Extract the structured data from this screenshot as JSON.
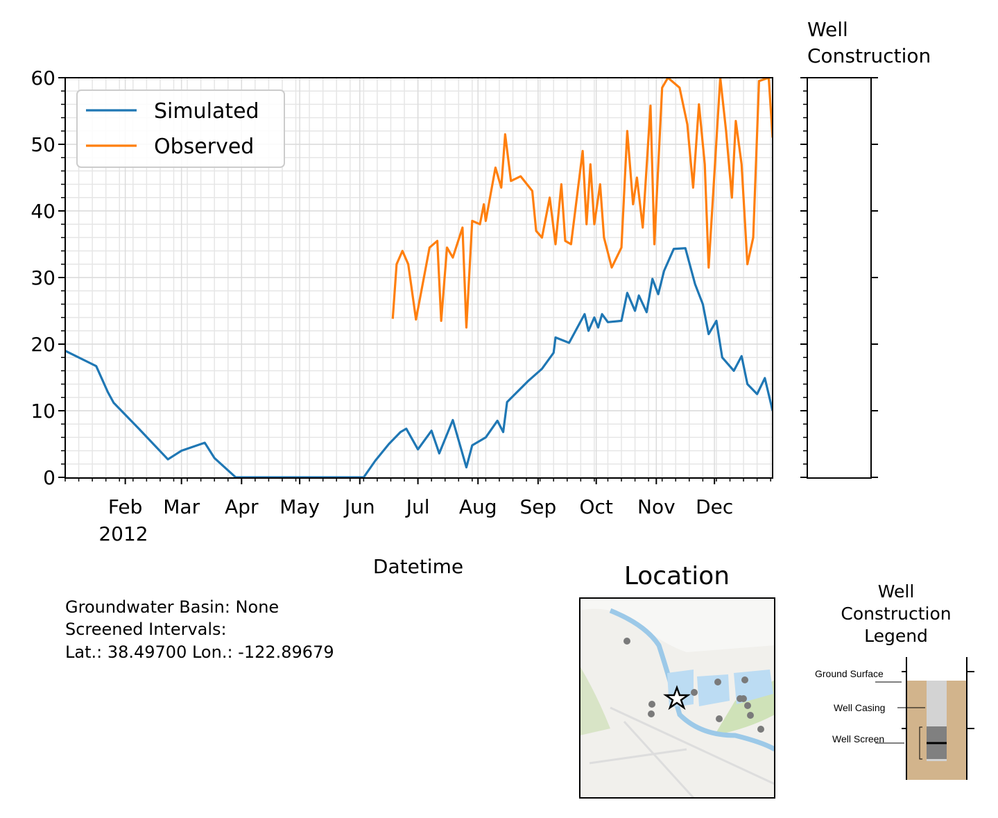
{
  "chart_data": {
    "type": "line",
    "xlabel": "Datetime",
    "year_label": "2012",
    "xlim": [
      "2012-01-01",
      "2012-12-31"
    ],
    "xticks": [
      {
        "value": "2012-02-01",
        "label": "Feb"
      },
      {
        "value": "2012-03-01",
        "label": "Mar"
      },
      {
        "value": "2012-04-01",
        "label": "Apr"
      },
      {
        "value": "2012-05-01",
        "label": "May"
      },
      {
        "value": "2012-06-01",
        "label": "Jun"
      },
      {
        "value": "2012-07-01",
        "label": "Jul"
      },
      {
        "value": "2012-08-01",
        "label": "Aug"
      },
      {
        "value": "2012-09-01",
        "label": "Sep"
      },
      {
        "value": "2012-10-01",
        "label": "Oct"
      },
      {
        "value": "2012-11-01",
        "label": "Nov"
      },
      {
        "value": "2012-12-01",
        "label": "Dec"
      }
    ],
    "ylim": [
      0,
      60
    ],
    "yticks": [
      0,
      10,
      20,
      30,
      40,
      50,
      60
    ],
    "grid": true,
    "legend": "upper left",
    "series": [
      {
        "name": "Simulated",
        "color": "#1f77b4",
        "x": [
          "2012-01-01",
          "2012-01-17",
          "2012-01-23",
          "2012-01-26",
          "2012-02-08",
          "2012-02-23",
          "2012-03-01",
          "2012-03-13",
          "2012-03-18",
          "2012-03-29",
          "2012-04-15",
          "2012-05-15",
          "2012-06-03",
          "2012-06-09",
          "2012-06-16",
          "2012-06-22",
          "2012-06-25",
          "2012-07-01",
          "2012-07-08",
          "2012-07-12",
          "2012-07-19",
          "2012-07-26",
          "2012-07-29",
          "2012-08-05",
          "2012-08-11",
          "2012-08-14",
          "2012-08-16",
          "2012-08-27",
          "2012-09-03",
          "2012-09-09",
          "2012-09-10",
          "2012-09-17",
          "2012-09-25",
          "2012-09-27",
          "2012-09-30",
          "2012-10-02",
          "2012-10-04",
          "2012-10-07",
          "2012-10-14",
          "2012-10-17",
          "2012-10-21",
          "2012-10-23",
          "2012-10-27",
          "2012-10-30",
          "2012-11-02",
          "2012-11-05",
          "2012-11-10",
          "2012-11-16",
          "2012-11-21",
          "2012-11-25",
          "2012-11-28",
          "2012-12-02",
          "2012-12-05",
          "2012-12-11",
          "2012-12-15",
          "2012-12-18",
          "2012-12-23",
          "2012-12-27",
          "2012-12-31"
        ],
        "values": [
          19,
          16.7,
          12.8,
          11.2,
          7.3,
          2.7,
          4,
          5.2,
          2.9,
          0,
          0,
          0,
          0,
          2.5,
          5,
          6.8,
          7.3,
          4.2,
          7,
          3.6,
          8.6,
          1.5,
          4.8,
          6,
          8.5,
          6.8,
          11.3,
          14.5,
          16.3,
          18.7,
          21,
          20.2,
          24.5,
          22,
          24,
          22.5,
          24.5,
          23.3,
          23.5,
          27.7,
          25,
          27.3,
          24.8,
          29.8,
          27.5,
          31,
          34.3,
          34.4,
          29,
          26,
          21.5,
          23.5,
          18,
          16,
          18.2,
          14,
          12.5,
          14.9,
          10
        ]
      },
      {
        "name": "Observed",
        "color": "#ff7f0e",
        "x": [
          "2012-06-18",
          "2012-06-20",
          "2012-06-23",
          "2012-06-26",
          "2012-06-30",
          "2012-07-07",
          "2012-07-11",
          "2012-07-13",
          "2012-07-16",
          "2012-07-19",
          "2012-07-24",
          "2012-07-26",
          "2012-07-29",
          "2012-08-02",
          "2012-08-04",
          "2012-08-05",
          "2012-08-10",
          "2012-08-13",
          "2012-08-15",
          "2012-08-18",
          "2012-08-23",
          "2012-08-29",
          "2012-08-31",
          "2012-09-03",
          "2012-09-07",
          "2012-09-10",
          "2012-09-13",
          "2012-09-15",
          "2012-09-18",
          "2012-09-24",
          "2012-09-26",
          "2012-09-28",
          "2012-09-30",
          "2012-10-03",
          "2012-10-05",
          "2012-10-09",
          "2012-10-14",
          "2012-10-17",
          "2012-10-20",
          "2012-10-22",
          "2012-10-25",
          "2012-10-29",
          "2012-10-31",
          "2012-11-04",
          "2012-11-07",
          "2012-11-13",
          "2012-11-17",
          "2012-11-20",
          "2012-11-23",
          "2012-11-26",
          "2012-11-28",
          "2012-12-04",
          "2012-12-07",
          "2012-12-10",
          "2012-12-12",
          "2012-12-15",
          "2012-12-18",
          "2012-12-21",
          "2012-12-24",
          "2012-12-29",
          "2012-12-31"
        ],
        "values": [
          23.8,
          32,
          34,
          32,
          23.7,
          34.5,
          35.5,
          23.5,
          34.5,
          33,
          37.5,
          22.5,
          38.5,
          38,
          41,
          38.5,
          46.5,
          43.5,
          51.5,
          44.5,
          45.2,
          43,
          37,
          36,
          42,
          35,
          44,
          35.5,
          35,
          49,
          38,
          47,
          38,
          44,
          36,
          31.5,
          34.5,
          52,
          41,
          45,
          37.5,
          55.8,
          35,
          58.5,
          60,
          58.5,
          53,
          43.5,
          56,
          47,
          31.5,
          60,
          52,
          42,
          53.5,
          47,
          32,
          36,
          59.5,
          60,
          51
        ]
      }
    ]
  },
  "well_construction": {
    "title": [
      "Well",
      "Construction"
    ]
  },
  "info": [
    "Groundwater Basin: None",
    "Screened Intervals:",
    "Lat.: 38.49700 Lon.: -122.89679"
  ],
  "location": {
    "title": "Location"
  },
  "construction_legend": {
    "title": [
      "Well",
      "Construction",
      "Legend"
    ],
    "labels": [
      "Ground Surface",
      "Well Casing",
      "Well Screen"
    ]
  }
}
